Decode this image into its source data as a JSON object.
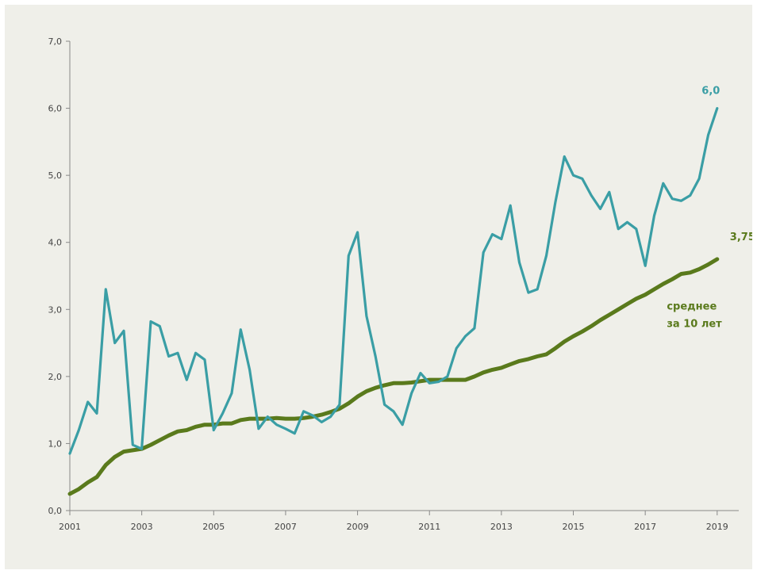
{
  "chart_data": {
    "type": "line",
    "title": "",
    "xlabel": "",
    "ylabel": "",
    "xlim": [
      2001,
      2019.6
    ],
    "ylim": [
      0,
      7
    ],
    "y_ticks": [
      "0,0",
      "1,0",
      "2,0",
      "3,0",
      "4,0",
      "5,0",
      "6,0",
      "7,0"
    ],
    "x_ticks": [
      "2001",
      "2003",
      "2005",
      "2007",
      "2009",
      "2011",
      "2013",
      "2015",
      "2017",
      "2019"
    ],
    "grid": false,
    "legend": "none",
    "colors": {
      "series1": "#3a9ea5",
      "series2": "#5a7a1c",
      "axis": "#888888"
    },
    "series": [
      {
        "name": "",
        "x": [
          2001.0,
          2001.25,
          2001.5,
          2001.75,
          2002.0,
          2002.25,
          2002.5,
          2002.75,
          2003.0,
          2003.25,
          2003.5,
          2003.75,
          2004.0,
          2004.25,
          2004.5,
          2004.75,
          2005.0,
          2005.25,
          2005.5,
          2005.75,
          2006.0,
          2006.25,
          2006.5,
          2006.75,
          2007.0,
          2007.25,
          2007.5,
          2007.75,
          2008.0,
          2008.25,
          2008.5,
          2008.75,
          2009.0,
          2009.25,
          2009.5,
          2009.75,
          2010.0,
          2010.25,
          2010.5,
          2010.75,
          2011.0,
          2011.25,
          2011.5,
          2011.75,
          2012.0,
          2012.25,
          2012.5,
          2012.75,
          2013.0,
          2013.25,
          2013.5,
          2013.75,
          2014.0,
          2014.25,
          2014.5,
          2014.75,
          2015.0,
          2015.25,
          2015.5,
          2015.75,
          2016.0,
          2016.25,
          2016.5,
          2016.75,
          2017.0,
          2017.25,
          2017.5,
          2017.75,
          2018.0,
          2018.25,
          2018.5,
          2018.75,
          2019.0
        ],
        "values": [
          0.85,
          1.2,
          1.62,
          1.45,
          3.3,
          2.5,
          2.68,
          0.98,
          0.92,
          2.82,
          2.75,
          2.3,
          2.35,
          1.95,
          2.35,
          2.25,
          1.2,
          1.45,
          1.75,
          2.7,
          2.1,
          1.22,
          1.4,
          1.28,
          1.22,
          1.15,
          1.48,
          1.42,
          1.32,
          1.4,
          1.58,
          3.8,
          4.15,
          2.9,
          2.3,
          1.58,
          1.48,
          1.28,
          1.75,
          2.05,
          1.9,
          1.92,
          2.0,
          2.42,
          2.6,
          2.72,
          3.85,
          4.12,
          4.05,
          4.55,
          3.7,
          3.25,
          3.3,
          3.8,
          4.6,
          5.28,
          5.0,
          4.95,
          4.7,
          4.5,
          4.75,
          4.2,
          4.3,
          4.2,
          3.65,
          4.4,
          4.88,
          4.65,
          4.62,
          4.7,
          4.95,
          5.6,
          6.0
        ]
      },
      {
        "name": "среднее\nза 10 лет",
        "x": [
          2001.0,
          2001.25,
          2001.5,
          2001.75,
          2002.0,
          2002.25,
          2002.5,
          2002.75,
          2003.0,
          2003.25,
          2003.5,
          2003.75,
          2004.0,
          2004.25,
          2004.5,
          2004.75,
          2005.0,
          2005.25,
          2005.5,
          2005.75,
          2006.0,
          2006.25,
          2006.5,
          2006.75,
          2007.0,
          2007.25,
          2007.5,
          2007.75,
          2008.0,
          2008.25,
          2008.5,
          2008.75,
          2009.0,
          2009.25,
          2009.5,
          2009.75,
          2010.0,
          2010.25,
          2010.5,
          2010.75,
          2011.0,
          2011.25,
          2011.5,
          2011.75,
          2012.0,
          2012.25,
          2012.5,
          2012.75,
          2013.0,
          2013.25,
          2013.5,
          2013.75,
          2014.0,
          2014.25,
          2014.5,
          2014.75,
          2015.0,
          2015.25,
          2015.5,
          2015.75,
          2016.0,
          2016.25,
          2016.5,
          2016.75,
          2017.0,
          2017.25,
          2017.5,
          2017.75,
          2018.0,
          2018.25,
          2018.5,
          2018.75,
          2019.0
        ],
        "values": [
          0.25,
          0.32,
          0.42,
          0.5,
          0.68,
          0.8,
          0.88,
          0.9,
          0.92,
          0.98,
          1.05,
          1.12,
          1.18,
          1.2,
          1.25,
          1.28,
          1.28,
          1.3,
          1.3,
          1.35,
          1.37,
          1.37,
          1.37,
          1.38,
          1.37,
          1.37,
          1.38,
          1.4,
          1.43,
          1.47,
          1.52,
          1.6,
          1.7,
          1.78,
          1.83,
          1.87,
          1.9,
          1.9,
          1.91,
          1.93,
          1.95,
          1.95,
          1.95,
          1.95,
          1.95,
          2.0,
          2.06,
          2.1,
          2.13,
          2.18,
          2.23,
          2.26,
          2.3,
          2.33,
          2.42,
          2.52,
          2.6,
          2.67,
          2.75,
          2.84,
          2.92,
          3.0,
          3.08,
          3.16,
          3.22,
          3.3,
          3.38,
          3.45,
          3.53,
          3.55,
          3.6,
          3.67,
          3.75
        ]
      }
    ],
    "annotations": [
      {
        "text": "6,0",
        "x": 2019.0,
        "y": 6.0,
        "series": 0
      },
      {
        "text": "3,75",
        "x": 2019.0,
        "y": 3.75,
        "series": 1
      }
    ],
    "series_label": {
      "text": "среднее\nза 10 лет",
      "x": 2017.6,
      "y": 3.0
    }
  }
}
